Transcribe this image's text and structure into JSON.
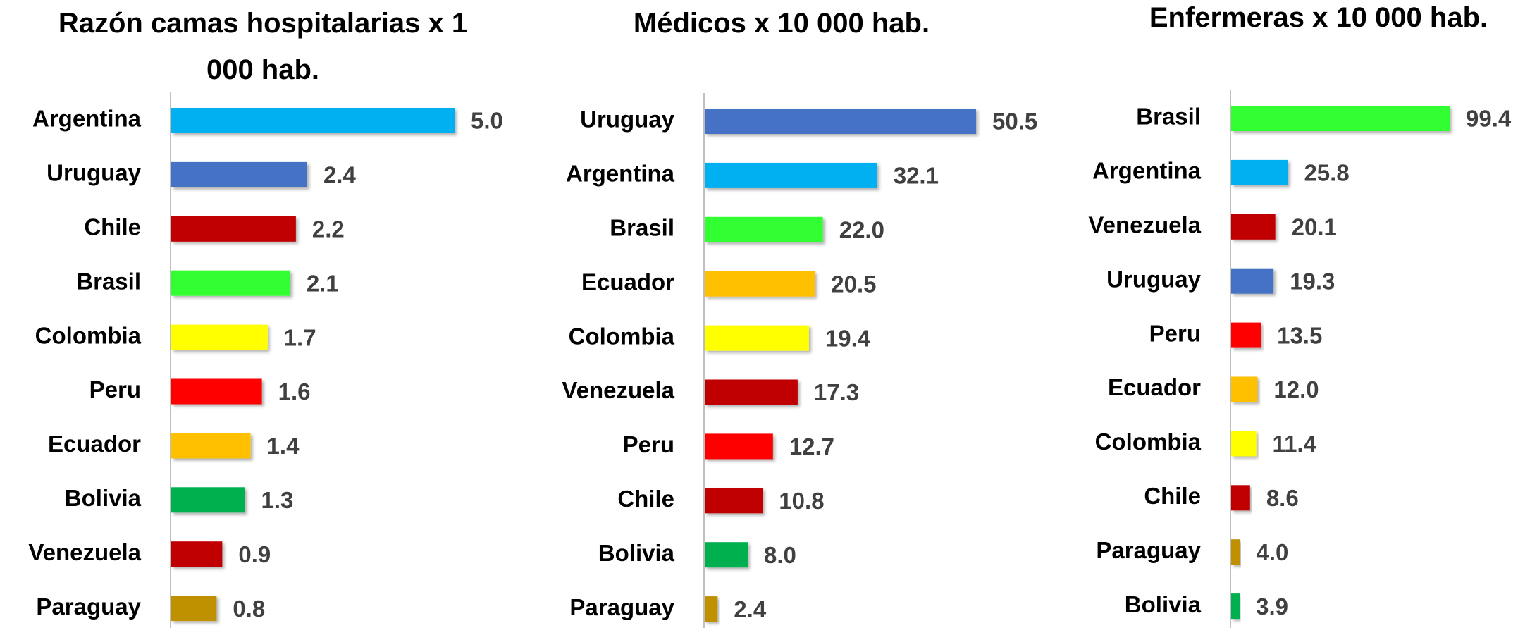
{
  "chart_data": [
    {
      "type": "bar",
      "orientation": "horizontal",
      "title": "Razón camas hospitalarias x 1 000 hab.",
      "categories": [
        "Argentina",
        "Uruguay",
        "Chile",
        "Brasil",
        "Colombia",
        "Peru",
        "Ecuador",
        "Bolivia",
        "Venezuela",
        "Paraguay"
      ],
      "values": [
        5.0,
        2.4,
        2.2,
        2.1,
        1.7,
        1.6,
        1.4,
        1.3,
        0.9,
        0.8
      ],
      "value_labels": [
        "5.0",
        "2.4",
        "2.2",
        "2.1",
        "1.7",
        "1.6",
        "1.4",
        "1.3",
        "0.9",
        "0.8"
      ],
      "colors": [
        "#00b0f0",
        "#4472c4",
        "#c00000",
        "#33ff33",
        "#ffff00",
        "#ff0000",
        "#ffc000",
        "#00b050",
        "#c00000",
        "#bf9000"
      ]
    },
    {
      "type": "bar",
      "orientation": "horizontal",
      "title": "Médicos x 10 000 hab.",
      "categories": [
        "Uruguay",
        "Argentina",
        "Brasil",
        "Ecuador",
        "Colombia",
        "Venezuela",
        "Peru",
        "Chile",
        "Bolivia",
        "Paraguay"
      ],
      "values": [
        50.5,
        32.1,
        22.0,
        20.5,
        19.4,
        17.3,
        12.7,
        10.8,
        8.0,
        2.4
      ],
      "value_labels": [
        "50.5",
        "32.1",
        "22.0",
        "20.5",
        "19.4",
        "17.3",
        "12.7",
        "10.8",
        "8.0",
        "2.4"
      ],
      "colors": [
        "#4472c4",
        "#00b0f0",
        "#33ff33",
        "#ffc000",
        "#ffff00",
        "#c00000",
        "#ff0000",
        "#c00000",
        "#00b050",
        "#bf9000"
      ]
    },
    {
      "type": "bar",
      "orientation": "horizontal",
      "title": "Enfermeras x 10 000 hab.",
      "categories": [
        "Brasil",
        "Argentina",
        "Venezuela",
        "Uruguay",
        "Peru",
        "Ecuador",
        "Colombia",
        "Chile",
        "Paraguay",
        "Bolivia"
      ],
      "values": [
        99.4,
        25.8,
        20.1,
        19.3,
        13.5,
        12.0,
        11.4,
        8.6,
        4.0,
        3.9
      ],
      "value_labels": [
        "99.4",
        "25.8",
        "20.1",
        "19.3",
        "13.5",
        "12.0",
        "11.4",
        "8.6",
        "4.0",
        "3.9"
      ],
      "colors": [
        "#33ff33",
        "#00b0f0",
        "#c00000",
        "#4472c4",
        "#ff0000",
        "#ffc000",
        "#ffff00",
        "#c00000",
        "#bf9000",
        "#00b050"
      ]
    }
  ]
}
